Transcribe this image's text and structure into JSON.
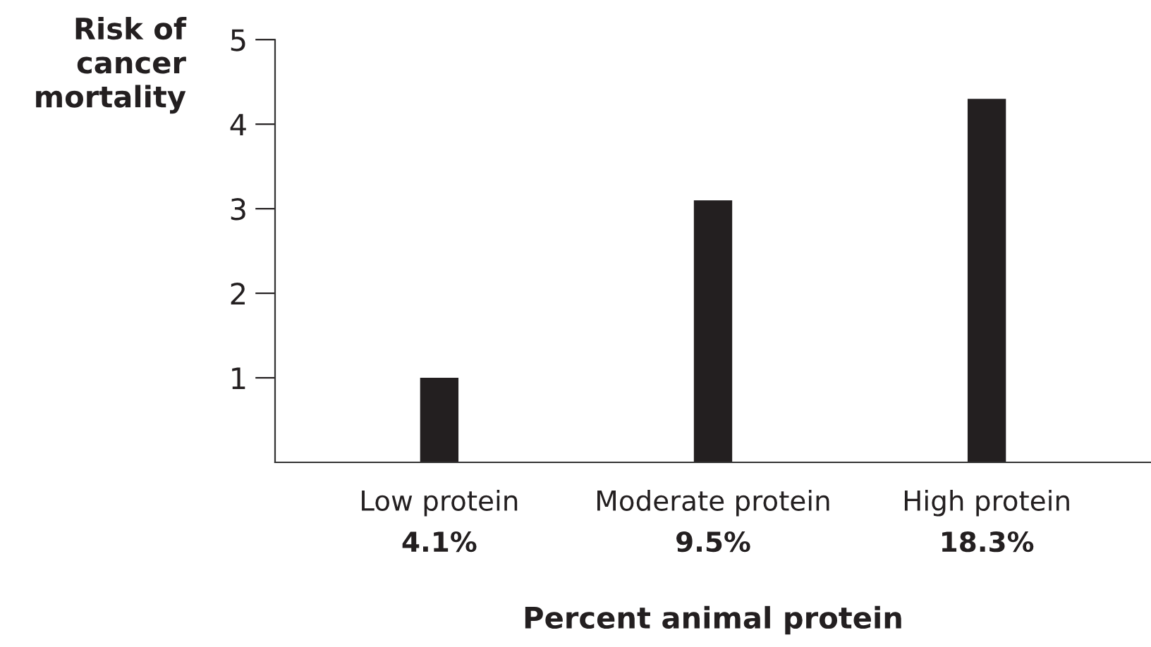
{
  "chart_data": {
    "type": "bar",
    "ylabel": "Risk of\ncancer\nmortality",
    "xlabel": "Percent animal protein",
    "categories": [
      "Low protein\n4.1%",
      "Moderate protein\n9.5%",
      "High protein\n18.3%"
    ],
    "values": [
      1,
      3.1,
      4.3
    ],
    "color": "#231f20",
    "ylim": [
      0,
      5
    ],
    "yticks": [
      1,
      2,
      3,
      4,
      5
    ],
    "grid": false,
    "legend": false
  }
}
